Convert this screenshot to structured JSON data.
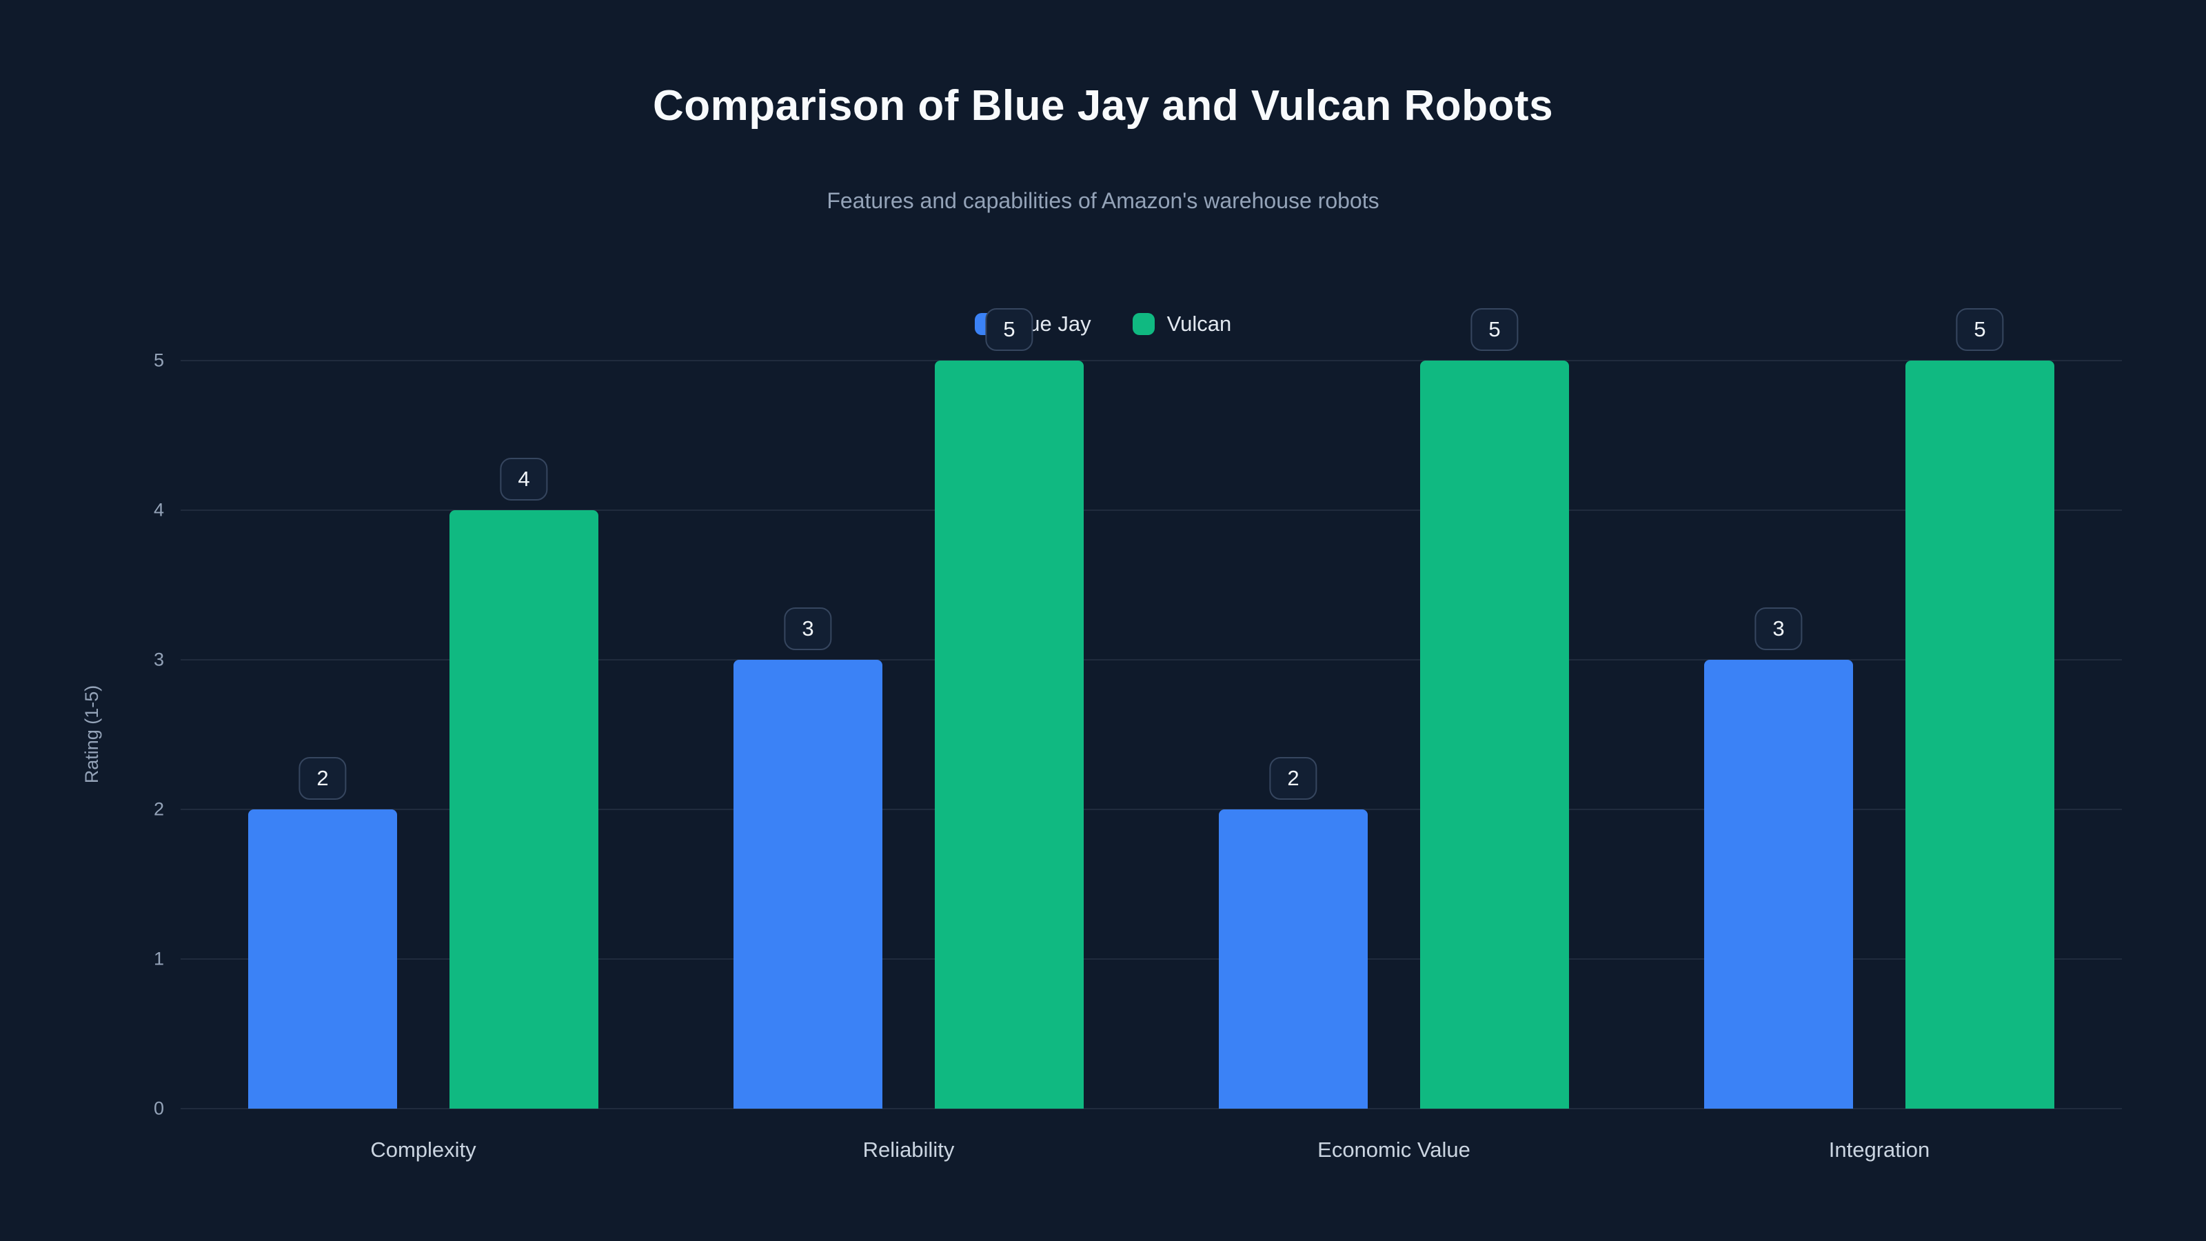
{
  "header": {
    "title": "Comparison of Blue Jay and Vulcan Robots",
    "subtitle": "Features and capabilities of Amazon's warehouse robots"
  },
  "chart_data": {
    "type": "bar",
    "title": "Comparison of Blue Jay and Vulcan Robots",
    "subtitle": "Features and capabilities of Amazon's warehouse robots",
    "categories": [
      "Complexity",
      "Reliability",
      "Economic Value",
      "Integration"
    ],
    "series": [
      {
        "name": "Blue Jay",
        "color": "#3b82f6",
        "values": [
          2,
          3,
          2,
          3
        ]
      },
      {
        "name": "Vulcan",
        "color": "#10b981",
        "values": [
          4,
          5,
          5,
          5
        ]
      }
    ],
    "xlabel": "",
    "ylabel": "Rating (1-5)",
    "ylim": [
      0,
      5
    ],
    "yticks": [
      0,
      1,
      2,
      3,
      4,
      5
    ],
    "grid": "horizontal",
    "legend_position": "top-center",
    "value_labels": true
  },
  "colors": {
    "background": "#0f1a2b",
    "blue_jay": "#3b82f6",
    "vulcan": "#10b981",
    "badge_bg": "#121f33",
    "badge_border": "#36465f"
  }
}
